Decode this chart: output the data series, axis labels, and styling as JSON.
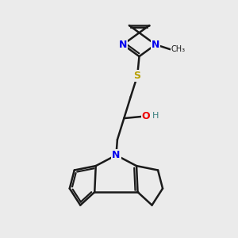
{
  "background_color": "#ebebeb",
  "bond_color": "#1a1a1a",
  "bond_width": 1.8,
  "N_color": "#0000ee",
  "S_color": "#b8a000",
  "O_color": "#ee0000",
  "H_color": "#3a8080",
  "figsize": [
    3.0,
    3.0
  ],
  "dpi": 100,
  "xlim": [
    0,
    10
  ],
  "ylim": [
    0,
    10
  ]
}
